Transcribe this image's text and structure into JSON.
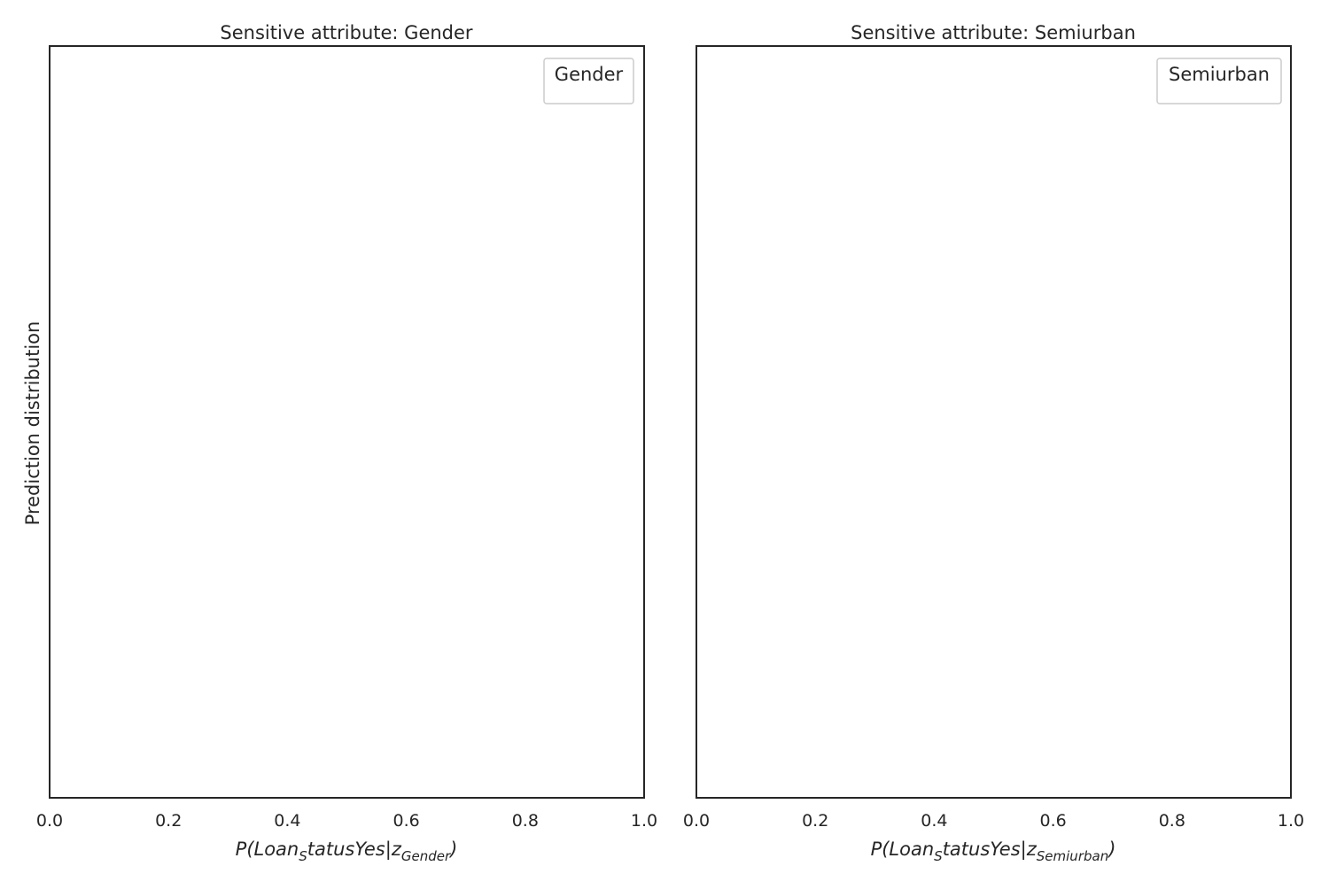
{
  "chart_data": [
    {
      "type": "area",
      "title": "Sensitive attribute: Gender",
      "xlabel": {
        "prefix": "P(Loan",
        "sub1": "S",
        "mid": "tatusYes|z",
        "sub2": "Gender",
        "suffix": ")"
      },
      "ylabel": "Prediction distribution",
      "xlim": [
        0.0,
        1.0
      ],
      "x_ticks": [
        "0.0",
        "0.2",
        "0.4",
        "0.6",
        "0.8",
        "1.0"
      ],
      "legend": {
        "title": "Gender",
        "placement": "upper-right",
        "entries": []
      },
      "series": [],
      "grid": false
    },
    {
      "type": "area",
      "title": "Sensitive attribute: Semiurban",
      "xlabel": {
        "prefix": "P(Loan",
        "sub1": "S",
        "mid": "tatusYes|z",
        "sub2": "Semiurban",
        "suffix": ")"
      },
      "ylabel": "",
      "xlim": [
        0.0,
        1.0
      ],
      "x_ticks": [
        "0.0",
        "0.2",
        "0.4",
        "0.6",
        "0.8",
        "1.0"
      ],
      "legend": {
        "title": "Semiurban",
        "placement": "upper-right",
        "entries": []
      },
      "series": [],
      "grid": false
    }
  ]
}
